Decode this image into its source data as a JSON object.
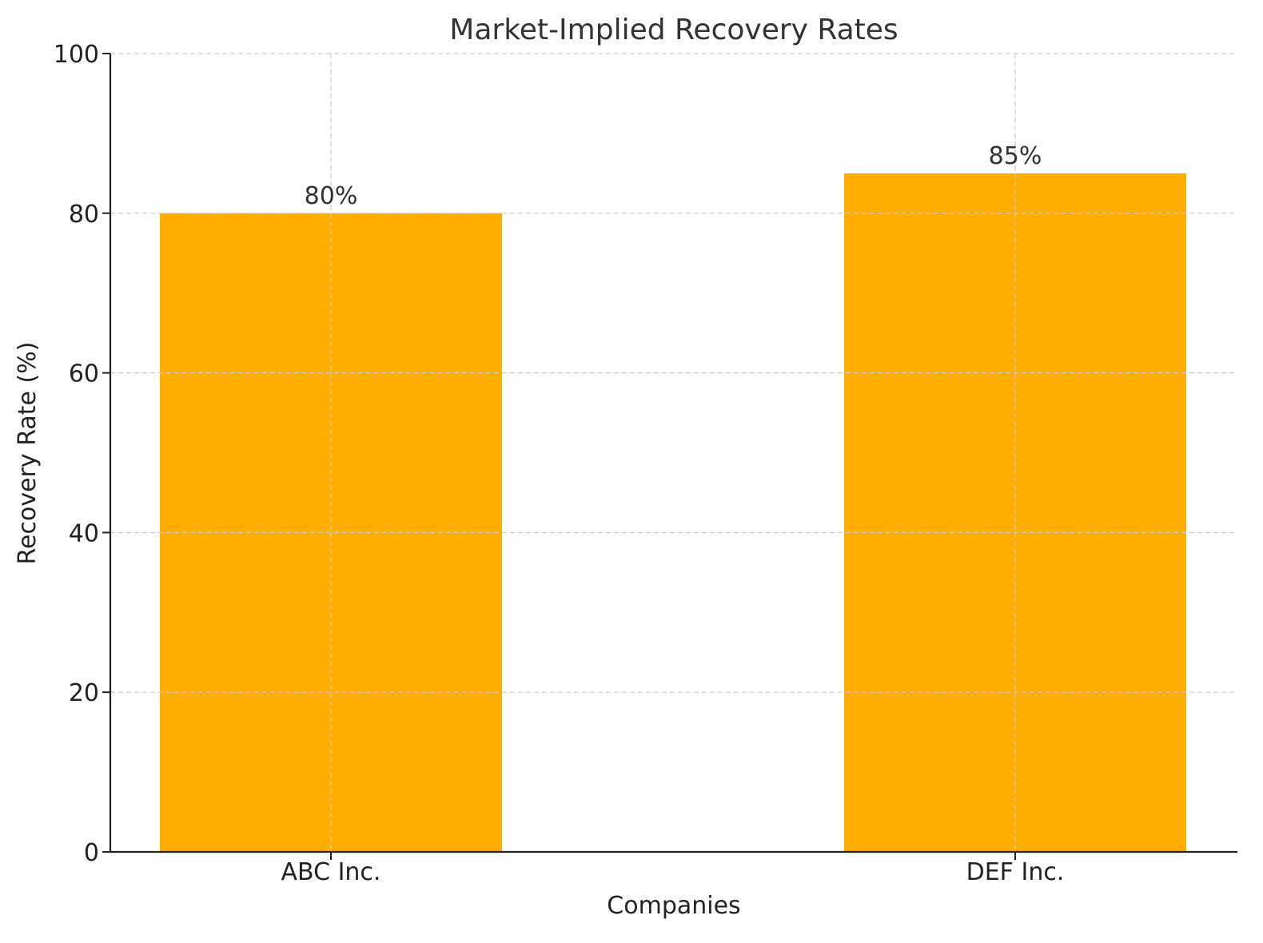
{
  "chart_data": {
    "type": "bar",
    "title": "Market-Implied Recovery Rates",
    "xlabel": "Companies",
    "ylabel": "Recovery Rate (%)",
    "categories": [
      "ABC Inc.",
      "DEF Inc."
    ],
    "values": [
      80,
      85
    ],
    "data_labels": [
      "80%",
      "85%"
    ],
    "ylim": [
      0,
      100
    ],
    "yticks": [
      0,
      20,
      40,
      60,
      80,
      100
    ],
    "bar_color": "#FFAE00",
    "grid": true,
    "legend": "none"
  }
}
